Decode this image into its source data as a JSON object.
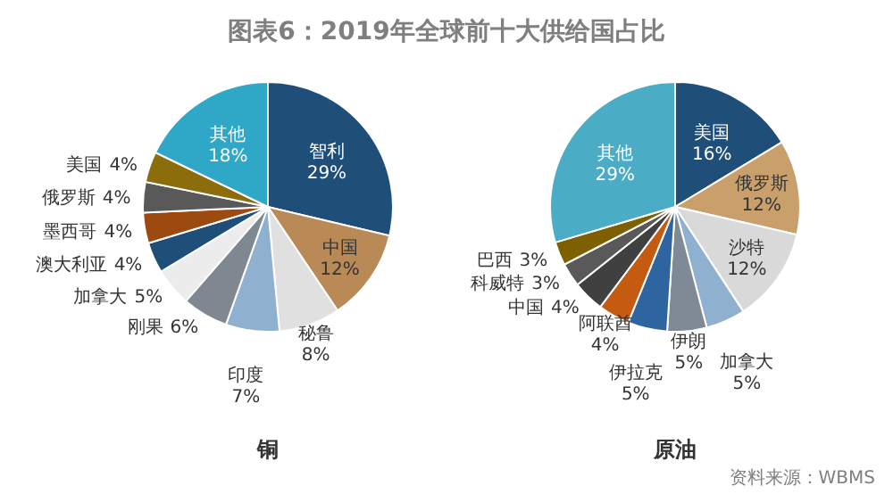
{
  "chart_data": [
    {
      "type": "pie",
      "title": "铜",
      "annotations": [
        "图表6：2019年全球前十大供给国占比"
      ],
      "categories": [
        "智利",
        "中国",
        "秘鲁",
        "印度",
        "刚果",
        "加拿大",
        "澳大利亚",
        "墨西哥",
        "俄罗斯",
        "美国",
        "其他"
      ],
      "values": [
        29,
        12,
        8,
        7,
        6,
        5,
        4,
        4,
        4,
        4,
        18
      ],
      "value_labels": [
        "29%",
        "12%",
        "8%",
        "7%",
        "6%",
        "5%",
        "4%",
        "4%",
        "4%",
        "4%",
        "18%"
      ],
      "colors": [
        "#1f4e79",
        "#b98a56",
        "#e0e0e0",
        "#8fb0cf",
        "#7f8790",
        "#ececec",
        "#1f4e79",
        "#9c4a10",
        "#595959",
        "#8c6d0c",
        "#2fa8c8"
      ]
    },
    {
      "type": "pie",
      "title": "原油",
      "annotations": [
        "资料来源：WBMS"
      ],
      "categories": [
        "美国",
        "俄罗斯",
        "沙特",
        "加拿大",
        "伊朗",
        "伊拉克",
        "阿联酋",
        "中国",
        "科威特",
        "巴西",
        "其他"
      ],
      "values": [
        16,
        12,
        12,
        5,
        5,
        5,
        4,
        4,
        3,
        3,
        29
      ],
      "value_labels": [
        "16%",
        "12%",
        "12%",
        "5%",
        "5%",
        "5%",
        "4%",
        "4%",
        "3%",
        "3%",
        "29%"
      ],
      "colors": [
        "#1f4e79",
        "#c9a06c",
        "#d9d9d9",
        "#8fb0cf",
        "#7f8a96",
        "#2e64a0",
        "#c55a11",
        "#404040",
        "#595959",
        "#7f6000",
        "#4bacc6"
      ]
    }
  ]
}
